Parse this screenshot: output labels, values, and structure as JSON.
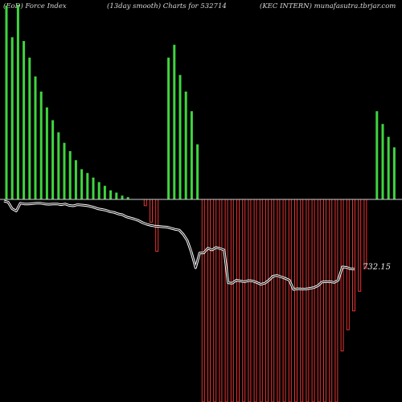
{
  "header": {
    "left": "(EoD) Force   Index",
    "center": "(13day smooth) Charts for 532714",
    "right": "(KEC INTERN) munafasutra.tbrjar.com"
  },
  "chart_data": {
    "type": "bar",
    "title": "(13day smooth) Charts for 532714",
    "series": [
      {
        "name": "Force Index",
        "kind": "bar",
        "note": "relative magnitude, positive = green, negative = red; zero line at baseline",
        "values": [
          257,
          215,
          258,
          210,
          188,
          163,
          143,
          122,
          105,
          89,
          75,
          64,
          52,
          40,
          35,
          29,
          23,
          18,
          12,
          9,
          5,
          3,
          0,
          0,
          -8,
          -29,
          -66,
          0,
          188,
          205,
          165,
          143,
          117,
          73,
          -258,
          -258,
          -258,
          -258,
          -258,
          -258,
          -258,
          -258,
          -258,
          -258,
          -258,
          -258,
          -258,
          -258,
          -258,
          -258,
          -258,
          -258,
          -258,
          -258,
          -258,
          -258,
          -258,
          -258,
          -193,
          -166,
          -142,
          -117,
          -88,
          0,
          117,
          100,
          83,
          69
        ],
        "colors": {
          "positive": "#3fd43f",
          "negative": "#e83232"
        }
      },
      {
        "name": "Price",
        "kind": "line",
        "note": "overlay line (closing price, scaled)",
        "values": [
          745,
          742,
          724,
          718,
          739,
          737,
          737,
          738,
          739,
          739,
          737,
          736,
          737,
          737,
          735,
          737,
          733,
          732,
          735,
          734,
          733,
          731,
          728,
          724,
          722,
          720,
          716,
          714,
          710,
          708,
          702,
          699,
          696,
          692,
          686,
          682,
          679,
          677,
          676,
          675,
          674,
          671,
          668,
          666,
          654,
          637,
          605,
          564,
          604,
          604,
          617,
          612,
          619,
          616,
          612,
          523,
          522,
          530,
          528,
          526,
          529,
          528,
          524,
          519,
          522,
          530,
          541,
          543,
          539,
          535,
          530,
          505,
          507,
          506,
          506,
          508,
          510,
          515,
          525,
          526,
          526,
          524,
          530,
          566,
          565,
          561,
          560
        ],
        "last_label": "732.15",
        "color": "#ffffff"
      }
    ],
    "zero_line": true,
    "grid": false,
    "legend": "none"
  }
}
